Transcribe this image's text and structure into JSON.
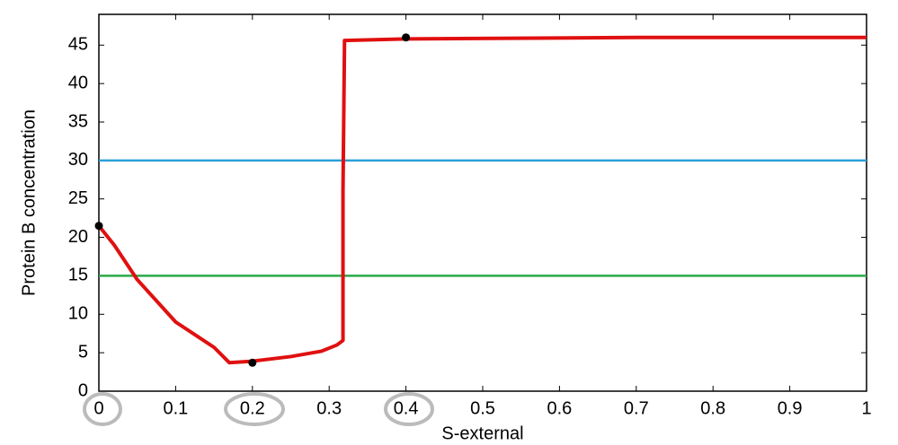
{
  "chart_data": {
    "type": "line",
    "x_label": "S-external",
    "y_label": "Protein B concentration",
    "xlim": [
      0,
      1
    ],
    "ylim": [
      0,
      49
    ],
    "xticks": [
      0,
      0.1,
      0.2,
      0.3,
      0.4,
      0.5,
      0.6,
      0.7,
      0.8,
      0.9,
      1
    ],
    "yticks": [
      0,
      5,
      10,
      15,
      20,
      25,
      30,
      35,
      40,
      45
    ],
    "series": [
      {
        "color": "#e01010",
        "x": [
          0,
          0.02,
          0.05,
          0.1,
          0.15,
          0.17,
          0.2,
          0.25,
          0.29,
          0.31,
          0.318,
          0.318,
          0.32,
          0.4,
          0.7,
          1
        ],
        "values": [
          21.5,
          19,
          14.5,
          9,
          5.7,
          3.7,
          3.9,
          4.5,
          5.2,
          6,
          6.6,
          26,
          45.6,
          45.8,
          46,
          46
        ]
      }
    ],
    "hlines": [
      {
        "value": 30,
        "color": "#2a9fd6"
      },
      {
        "value": 15,
        "color": "#2aa84a"
      }
    ],
    "markers": {
      "color": "#000000",
      "x": [
        0,
        0.2,
        0.4
      ],
      "values": [
        21.5,
        3.7,
        46
      ]
    }
  }
}
